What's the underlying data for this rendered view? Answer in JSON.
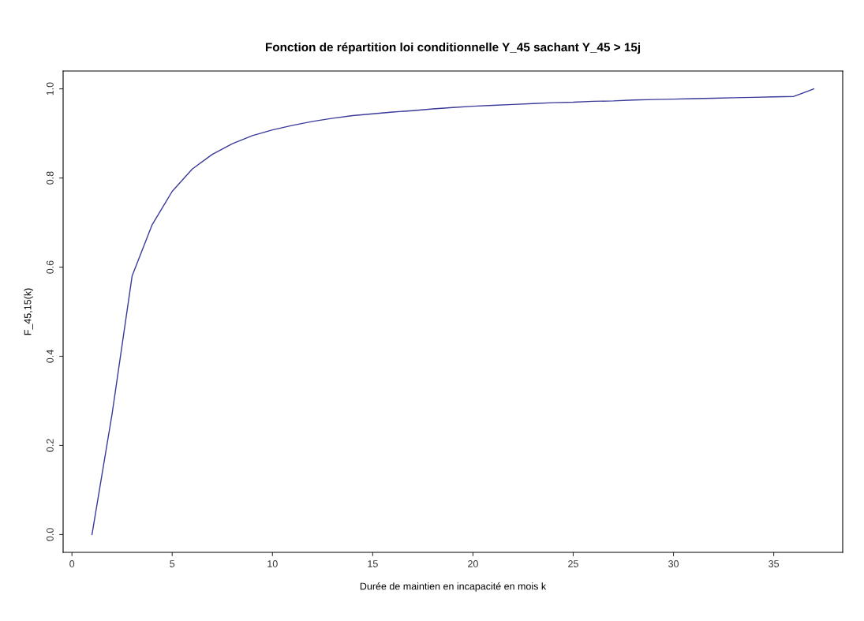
{
  "chart_data": {
    "type": "line",
    "title": "Fonction de répartition loi conditionnelle Y_45 sachant Y_45 > 15j",
    "xlabel": "Durée de maintien en incapacité en mois k",
    "ylabel": "F_45,15(k)",
    "x": [
      1,
      2,
      3,
      4,
      5,
      6,
      7,
      8,
      9,
      10,
      11,
      12,
      13,
      14,
      15,
      16,
      17,
      18,
      19,
      20,
      21,
      22,
      23,
      24,
      25,
      26,
      27,
      28,
      29,
      30,
      31,
      32,
      33,
      34,
      35,
      36,
      37
    ],
    "series": [
      {
        "color": "#3a3a9a",
        "values": [
          0,
          0.27,
          0.58,
          0.695,
          0.77,
          0.82,
          0.853,
          0.877,
          0.895,
          0.908,
          0.918,
          0.927,
          0.934,
          0.94,
          0.944,
          0.948,
          0.951,
          0.955,
          0.958,
          0.961,
          0.963,
          0.965,
          0.967,
          0.969,
          0.97,
          0.972,
          0.973,
          0.975,
          0.976,
          0.977,
          0.978,
          0.979,
          0.98,
          0.981,
          0.982,
          0.983,
          1.0
        ]
      }
    ],
    "xlim": [
      -0.44,
      38.44
    ],
    "ylim": [
      -0.04,
      1.04
    ],
    "xticks": [
      0,
      5,
      10,
      15,
      20,
      25,
      30,
      35
    ],
    "yticks": [
      {
        "value": 0,
        "label": "0.0"
      },
      {
        "value": 0.2,
        "label": "0.2"
      },
      {
        "value": 0.4,
        "label": "0.4"
      },
      {
        "value": 0.6,
        "label": "0.6"
      },
      {
        "value": 0.8,
        "label": "0.8"
      },
      {
        "value": 1,
        "label": "1.0"
      }
    ],
    "grid": false,
    "legend": false
  }
}
